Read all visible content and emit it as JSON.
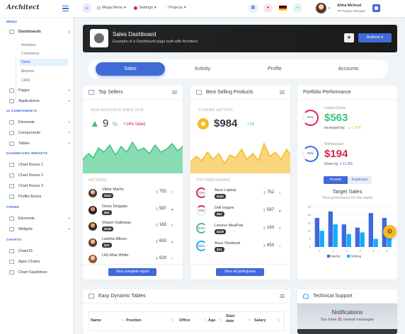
{
  "app": {
    "logo": "Architect"
  },
  "topnav": {
    "mega_menu": "Mega Menu",
    "settings": "Settings",
    "projects": "Projects"
  },
  "user": {
    "name": "Alina Mcloud",
    "role": "VP People Manager"
  },
  "sidebar": {
    "sections": [
      {
        "label": "MENU"
      },
      {
        "label": "UI COMPONENTS"
      },
      {
        "label": "DASHBOARD WIDGETS"
      },
      {
        "label": "FORMS"
      },
      {
        "label": "CHARTS"
      }
    ],
    "dashboards": "Dashboards",
    "dashboard_subs": [
      "Analytics",
      "Commerce",
      "Sales",
      "Minimal",
      "CRM"
    ],
    "menu_items": [
      "Pages",
      "Applications"
    ],
    "ui_items": [
      "Elements",
      "Components",
      "Tables"
    ],
    "widget_items": [
      "Chart Boxes 1",
      "Chart Boxes 2",
      "Chart Boxes 3",
      "Profile Boxes"
    ],
    "form_items": [
      "Elements",
      "Widgets"
    ],
    "chart_items": [
      "ChartJS",
      "Apex Charts",
      "Chart Sparklines"
    ]
  },
  "banner": {
    "title": "Sales Dashboard",
    "subtitle": "Example of a Dashboard page built with Architect.",
    "star": "★",
    "buttons_label": "Buttons"
  },
  "tabs": [
    "Sales",
    "Activity",
    "Profile",
    "Accounts"
  ],
  "top_sellers": {
    "title": "Top Sellers",
    "metric_label": "NEW ACCOUNTS SINCE 2018",
    "value": "9",
    "unit": "%",
    "change": "+14% failed",
    "authors_label": "AUTHORS",
    "rows": [
      {
        "name": "Viktor Martin",
        "badge": "$152",
        "value": "752",
        "dir": "▾"
      },
      {
        "name": "Denis Delgado",
        "badge": "$53",
        "value": "587",
        "dir": "▴"
      },
      {
        "name": "Shawn Galloway",
        "badge": "$239",
        "value": "163",
        "dir": "▾"
      },
      {
        "name": "Latisha Allison",
        "badge": "$21",
        "value": "653",
        "dir": "▴"
      },
      {
        "name": "Lilly-Mae White",
        "badge": "",
        "value": "629",
        "dir": "▾"
      }
    ],
    "button": "View complete report"
  },
  "best_products": {
    "title": "Best Selling Products",
    "metric_label": "TOSHIBA LAPTOPS",
    "value": "$984",
    "change": "+14",
    "list_label": "TOP PERFORMING",
    "rows": [
      {
        "pct": "72%",
        "name": "Asus Laptop",
        "badge": "$152",
        "value": "752"
      },
      {
        "pct": "23%",
        "name": "Dell Inspire",
        "badge": "$53",
        "value": "587"
      },
      {
        "pct": "84%",
        "name": "Lenovo IdeaPad",
        "badge": "$239",
        "value": "163"
      },
      {
        "pct": "69%",
        "name": "Asus Vivobook",
        "badge": "$21",
        "value": "653"
      }
    ],
    "button": "View all participants"
  },
  "portfolio": {
    "title": "Portfolio Performance",
    "gains": {
      "pct": "64%",
      "label": "Capital Gains",
      "value": "$563",
      "sub": "Increased by",
      "change": "7.35%"
    },
    "withdrawals": {
      "pct": "58%",
      "label": "Withdrawals",
      "value": "$194",
      "sub": "Down by",
      "change": "21.8%"
    },
    "toggle": [
      "Income",
      "Expenses"
    ],
    "target_title": "Target Sales",
    "target_sub": "Total performance for this month"
  },
  "chart_data": {
    "type": "bar",
    "categories": [
      "1",
      "2",
      "3",
      "4",
      "5",
      "6"
    ],
    "series": [
      {
        "name": "Marine",
        "values": [
          18,
          22,
          14,
          12,
          21,
          18
        ]
      },
      {
        "name": "Striking",
        "values": [
          10,
          14,
          8,
          9,
          5,
          6
        ]
      }
    ],
    "ylim": [
      0,
      25
    ],
    "yticks": [
      "0",
      "5",
      "10",
      "15",
      "20",
      "25"
    ],
    "legend": "bottom",
    "colors": {
      "Marine": "#3f6ad8",
      "Striking": "#16aaff"
    }
  },
  "tables": {
    "title": "Easy Dynamic Tables",
    "headers": [
      "Name",
      "Position",
      "Office",
      "Age",
      "Start date",
      "Salary"
    ],
    "sort": "⇅"
  },
  "support": {
    "title": "Technical Support",
    "heading": "Notifications",
    "text_pre": "You have ",
    "count": "21",
    "text_post": " unread messages"
  }
}
